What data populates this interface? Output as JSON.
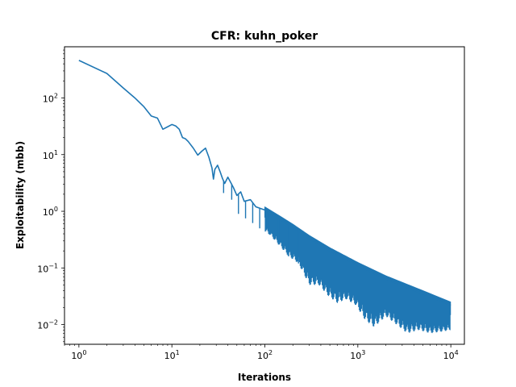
{
  "chart_data": {
    "type": "line",
    "title": "CFR: kuhn_poker",
    "xlabel": "Iterations",
    "ylabel": "Exploitability (mbb)",
    "xscale": "log",
    "yscale": "log",
    "xlim": [
      0.7,
      14000
    ],
    "ylim": [
      0.0045,
      800
    ],
    "x_ticks": [
      {
        "value": 1,
        "base": "10",
        "exp": "0"
      },
      {
        "value": 10,
        "base": "10",
        "exp": "1"
      },
      {
        "value": 100,
        "base": "10",
        "exp": "2"
      },
      {
        "value": 1000,
        "base": "10",
        "exp": "3"
      },
      {
        "value": 10000,
        "base": "10",
        "exp": "4"
      }
    ],
    "y_ticks": [
      {
        "value": 0.01,
        "base": "10",
        "exp": "−2"
      },
      {
        "value": 0.1,
        "base": "10",
        "exp": "−1"
      },
      {
        "value": 1,
        "base": "10",
        "exp": "0"
      },
      {
        "value": 10,
        "base": "10",
        "exp": "1"
      },
      {
        "value": 100,
        "base": "10",
        "exp": "2"
      }
    ],
    "grid": false,
    "legend": "none",
    "series": [
      {
        "color": "#1f77b4",
        "points": [
          [
            1,
            460
          ],
          [
            2,
            270
          ],
          [
            3,
            150
          ],
          [
            4,
            100
          ],
          [
            5,
            70
          ],
          [
            6,
            48
          ],
          [
            7,
            44
          ],
          [
            8,
            28
          ],
          [
            9,
            31
          ],
          [
            10,
            34
          ],
          [
            11,
            32
          ],
          [
            12,
            28
          ],
          [
            13,
            20
          ],
          [
            14,
            19
          ],
          [
            15,
            17
          ],
          [
            17,
            13
          ],
          [
            19,
            9.8
          ],
          [
            21,
            11.5
          ],
          [
            23,
            13
          ],
          [
            25,
            9
          ],
          [
            27,
            5.8
          ],
          [
            28,
            3.7
          ],
          [
            29,
            5.5
          ],
          [
            31,
            6.5
          ],
          [
            33,
            5
          ],
          [
            35,
            3.8
          ],
          [
            37,
            3.1
          ],
          [
            40,
            4
          ],
          [
            43,
            3.2
          ],
          [
            46,
            2.6
          ],
          [
            50,
            1.9
          ],
          [
            55,
            2.2
          ],
          [
            60,
            1.5
          ],
          [
            70,
            1.6
          ],
          [
            80,
            1.2
          ],
          [
            100,
            1.05
          ],
          [
            150,
            0.7
          ],
          [
            200,
            0.52
          ],
          [
            300,
            0.33
          ],
          [
            500,
            0.2
          ],
          [
            1000,
            0.11
          ],
          [
            2000,
            0.064
          ],
          [
            5000,
            0.035
          ],
          [
            10000,
            0.022
          ]
        ],
        "dips": [
          [
            28,
            3.7
          ],
          [
            36,
            2.1
          ],
          [
            44,
            1.6
          ],
          [
            52,
            0.9
          ],
          [
            62,
            0.75
          ],
          [
            74,
            0.62
          ],
          [
            88,
            0.5
          ],
          [
            110,
            0.4
          ],
          [
            140,
            0.26
          ],
          [
            180,
            0.16
          ],
          [
            230,
            0.12
          ],
          [
            300,
            0.05
          ],
          [
            380,
            0.05
          ],
          [
            480,
            0.032
          ],
          [
            600,
            0.024
          ],
          [
            750,
            0.028
          ],
          [
            950,
            0.022
          ],
          [
            1200,
            0.012
          ],
          [
            1500,
            0.009
          ],
          [
            2000,
            0.014
          ],
          [
            2600,
            0.01
          ],
          [
            3400,
            0.007
          ],
          [
            4500,
            0.008
          ],
          [
            6000,
            0.007
          ],
          [
            8000,
            0.0075
          ],
          [
            10000,
            0.008
          ]
        ]
      }
    ]
  }
}
